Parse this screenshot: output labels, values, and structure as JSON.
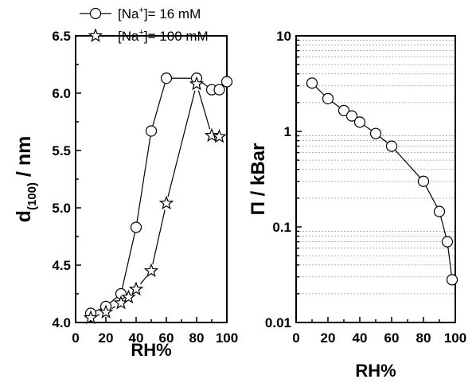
{
  "chart_data": [
    {
      "type": "scatter",
      "xlabel": "RH%",
      "ylabel": "d",
      "ylabel_subscript": "(100)",
      "ylabel_suffix": " / nm",
      "xlim": [
        0,
        100
      ],
      "ylim": [
        4.0,
        6.5
      ],
      "xticks": [
        "0",
        "20",
        "40",
        "60",
        "80",
        "100"
      ],
      "yticks": [
        "4.0",
        "4.5",
        "5.0",
        "5.5",
        "6.0",
        "6.5"
      ],
      "legend": {
        "placement": "top",
        "entries": [
          {
            "prefix": "[Na",
            "sup": "+",
            "suffix": "]= 16 mM",
            "marker": "circle"
          },
          {
            "prefix": "[Na",
            "sup": "+",
            "suffix": "]= 100 mM",
            "marker": "star"
          }
        ]
      },
      "series": [
        {
          "marker": "circle",
          "connected": true,
          "points": [
            [
              10,
              4.08
            ],
            [
              20,
              4.14
            ],
            [
              30,
              4.25
            ],
            [
              40,
              4.83
            ],
            [
              50,
              5.67
            ],
            [
              60,
              6.13
            ],
            [
              80,
              6.13
            ],
            [
              90,
              6.03
            ],
            [
              95,
              6.03
            ],
            [
              100,
              6.1
            ]
          ]
        },
        {
          "marker": "star",
          "connected": true,
          "points": [
            [
              10,
              4.04
            ],
            [
              20,
              4.09
            ],
            [
              30,
              4.17
            ],
            [
              35,
              4.22
            ],
            [
              40,
              4.29
            ],
            [
              50,
              4.45
            ],
            [
              60,
              5.04
            ],
            [
              80,
              6.08
            ],
            [
              90,
              5.63
            ],
            [
              95,
              5.62
            ]
          ]
        }
      ]
    },
    {
      "type": "scatter",
      "xlabel": "RH%",
      "ylabel": "Π / kBar",
      "yscale": "log",
      "xlim": [
        0,
        100
      ],
      "ylim": [
        0.01,
        10
      ],
      "xticks": [
        "0",
        "20",
        "40",
        "60",
        "80",
        "100"
      ],
      "yticks": [
        "0.01",
        "0.1",
        "1",
        "10"
      ],
      "grid": "horizontal dotted minor lines",
      "series": [
        {
          "marker": "circle",
          "connected": true,
          "points": [
            [
              10,
              3.2
            ],
            [
              20,
              2.2
            ],
            [
              30,
              1.65
            ],
            [
              35,
              1.45
            ],
            [
              40,
              1.25
            ],
            [
              50,
              0.95
            ],
            [
              60,
              0.7
            ],
            [
              80,
              0.3
            ],
            [
              90,
              0.145
            ],
            [
              95,
              0.07
            ],
            [
              98,
              0.028
            ]
          ]
        }
      ]
    }
  ]
}
